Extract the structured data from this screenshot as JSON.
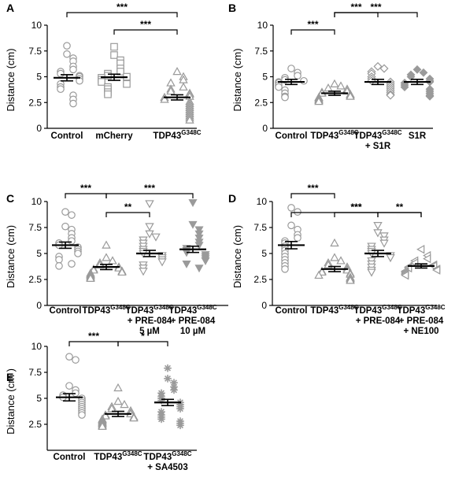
{
  "colors": {
    "marker": "#9a9a9a",
    "axis": "#000000"
  },
  "chart_data": [
    {
      "panel": "A",
      "type": "scatter",
      "ylabel": "Distance (cm)",
      "ylim": [
        0,
        10
      ],
      "yticks": [
        "0",
        "2.5",
        "5",
        "7.5",
        "10"
      ],
      "groups": [
        {
          "label": [
            "Control"
          ],
          "marker": "circle",
          "mean": 4.9,
          "sem": 0.3,
          "values": [
            8.0,
            7.2,
            6.8,
            6.5,
            6.0,
            5.7,
            5.5,
            5.3,
            5.1,
            5.0,
            4.8,
            4.6,
            4.3,
            4.0,
            3.8,
            3.2,
            2.8,
            2.4
          ]
        },
        {
          "label": [
            "mCherry"
          ],
          "marker": "square",
          "mean": 4.95,
          "sem": 0.3,
          "values": [
            7.9,
            7.1,
            6.6,
            6.3,
            5.8,
            5.5,
            5.3,
            5.1,
            5.0,
            4.9,
            4.7,
            4.5,
            4.3,
            4.0,
            3.8,
            3.5,
            3.3
          ]
        },
        {
          "label": [
            "TDP43G348C"
          ],
          "marker": "triangle-up",
          "mean": 3.0,
          "sem": 0.25,
          "values": [
            5.5,
            5.0,
            4.7,
            4.4,
            4.0,
            3.8,
            3.6,
            3.4,
            3.3,
            3.1,
            3.0,
            2.8,
            2.6,
            2.4,
            2.2,
            2.0,
            1.8,
            1.6,
            1.4,
            1.2,
            1.0,
            0.8
          ]
        }
      ],
      "significance": [
        {
          "from": 0,
          "to": 2,
          "label": "***"
        },
        {
          "from": 1,
          "to": 2,
          "label": "***"
        }
      ]
    },
    {
      "panel": "B",
      "type": "scatter",
      "ylabel": "Distance (cm)",
      "ylim": [
        0,
        10
      ],
      "yticks": [
        "0",
        "2.5",
        "5",
        "7.5",
        "10"
      ],
      "groups": [
        {
          "label": [
            "Control"
          ],
          "marker": "circle",
          "mean": 4.5,
          "sem": 0.25,
          "values": [
            5.8,
            5.4,
            5.1,
            4.9,
            4.7,
            4.6,
            4.5,
            4.4,
            4.2,
            4.0,
            3.7,
            3.4,
            3.1,
            3.0
          ]
        },
        {
          "label": [
            "TDP43G348C"
          ],
          "marker": "triangle-up",
          "mean": 3.4,
          "sem": 0.2,
          "values": [
            4.3,
            4.1,
            3.9,
            3.8,
            3.6,
            3.5,
            3.4,
            3.3,
            3.2,
            3.1,
            3.0,
            2.9,
            2.8,
            2.7,
            2.6
          ]
        },
        {
          "label": [
            "TDP43G348C",
            "+ S1R"
          ],
          "marker": "diamond",
          "mean": 4.5,
          "sem": 0.25,
          "values": [
            6.0,
            5.8,
            5.5,
            5.3,
            5.0,
            4.8,
            4.6,
            4.5,
            4.3,
            4.1,
            3.9,
            3.7,
            3.5,
            3.3,
            3.2
          ]
        },
        {
          "label": [
            "S1R"
          ],
          "marker": "diamond-filled",
          "mean": 4.5,
          "sem": 0.25,
          "values": [
            5.7,
            5.4,
            5.2,
            5.0,
            4.8,
            4.6,
            4.5,
            4.4,
            4.2,
            4.0,
            3.8,
            3.6,
            3.4,
            3.2,
            3.1
          ]
        }
      ],
      "significance": [
        {
          "from": 0,
          "to": 1,
          "label": "***"
        },
        {
          "from": 1,
          "to": 2,
          "label": "***"
        },
        {
          "from": 1,
          "to": 3,
          "label": "***"
        }
      ]
    },
    {
      "panel": "C",
      "type": "scatter",
      "ylabel": "Distance (cm)",
      "ylim": [
        0,
        10
      ],
      "yticks": [
        "0",
        "2.5",
        "5",
        "7.5",
        "10"
      ],
      "groups": [
        {
          "label": [
            "Control"
          ],
          "marker": "circle",
          "mean": 5.8,
          "sem": 0.3,
          "values": [
            9.0,
            8.7,
            7.6,
            7.3,
            6.9,
            6.5,
            6.2,
            6.0,
            5.8,
            5.6,
            5.4,
            5.2,
            5.0,
            4.7,
            4.4,
            4.0,
            3.8
          ]
        },
        {
          "label": [
            "TDP43G348C"
          ],
          "marker": "triangle-up",
          "mean": 3.7,
          "sem": 0.25,
          "values": [
            5.8,
            4.6,
            4.3,
            4.1,
            3.9,
            3.7,
            3.6,
            3.5,
            3.4,
            3.3,
            3.2,
            3.1,
            3.0,
            2.9,
            2.8,
            2.7,
            2.6
          ]
        },
        {
          "label": [
            "TDP43G348C",
            "+ PRE-084",
            "5 µM"
          ],
          "marker": "triangle-down",
          "mean": 5.0,
          "sem": 0.3,
          "values": [
            9.8,
            7.6,
            6.9,
            6.6,
            6.3,
            6.0,
            5.7,
            5.4,
            5.2,
            5.0,
            4.8,
            4.6,
            4.4,
            4.2,
            3.9,
            3.6,
            3.3
          ]
        },
        {
          "label": [
            "TDP43G348C",
            "+ PRE-084",
            "10 µM"
          ],
          "marker": "triangle-down-filled",
          "mean": 5.4,
          "sem": 0.3,
          "values": [
            9.9,
            7.8,
            7.3,
            6.9,
            6.5,
            6.1,
            5.8,
            5.5,
            5.3,
            5.1,
            4.9,
            4.7,
            4.5,
            4.3,
            4.0,
            3.6
          ]
        }
      ],
      "significance": [
        {
          "from": 0,
          "to": 1,
          "label": "***"
        },
        {
          "from": 1,
          "to": 2,
          "label": "**"
        },
        {
          "from": 1,
          "to": 3,
          "label": "***"
        }
      ]
    },
    {
      "panel": "D",
      "type": "scatter",
      "ylabel": "Distance (cm)",
      "ylim": [
        0,
        10
      ],
      "yticks": [
        "0",
        "2.5",
        "5",
        "7.5",
        "10"
      ],
      "groups": [
        {
          "label": [
            "Control"
          ],
          "marker": "circle",
          "mean": 5.8,
          "sem": 0.35,
          "values": [
            9.4,
            9.0,
            7.7,
            7.3,
            6.8,
            6.5,
            6.2,
            6.0,
            5.7,
            5.5,
            5.3,
            5.0,
            4.7,
            4.4,
            4.1,
            3.8,
            3.5
          ]
        },
        {
          "label": [
            "TDP43G348C"
          ],
          "marker": "triangle-up",
          "mean": 3.5,
          "sem": 0.25,
          "values": [
            6.0,
            4.6,
            4.3,
            4.1,
            3.9,
            3.7,
            3.5,
            3.4,
            3.3,
            3.2,
            3.1,
            3.0,
            2.9,
            2.7,
            2.6,
            2.5,
            2.4
          ]
        },
        {
          "label": [
            "TDP43G348C",
            "+ PRE-084"
          ],
          "marker": "triangle-down",
          "mean": 5.0,
          "sem": 0.3,
          "values": [
            7.7,
            7.0,
            6.7,
            6.3,
            6.0,
            5.7,
            5.4,
            5.2,
            5.0,
            4.8,
            4.6,
            4.3,
            4.0,
            3.7,
            3.4,
            3.2
          ]
        },
        {
          "label": [
            "TDP43G348C",
            "+ PRE-084",
            "+ NE100"
          ],
          "marker": "triangle-left",
          "mean": 3.8,
          "sem": 0.2,
          "values": [
            5.4,
            4.8,
            4.5,
            4.3,
            4.1,
            3.9,
            3.8,
            3.7,
            3.6,
            3.5,
            3.4,
            3.3,
            3.2,
            3.1,
            3.0,
            2.9
          ]
        }
      ],
      "significance": [
        {
          "from": 0,
          "to": 1,
          "label": "***"
        },
        {
          "from": 0,
          "to": 3,
          "label": "***"
        },
        {
          "from": 1,
          "to": 2,
          "label": "***"
        },
        {
          "from": 2,
          "to": 3,
          "label": "**"
        }
      ]
    },
    {
      "panel": "E",
      "type": "scatter",
      "ylabel": "Distance (cm )",
      "ylim": [
        0,
        10
      ],
      "yticks": [
        "2.5",
        "5",
        "7.5",
        "10"
      ],
      "groups": [
        {
          "label": [
            "Control"
          ],
          "marker": "circle",
          "mean": 5.1,
          "sem": 0.35,
          "values": [
            9.0,
            8.7,
            6.2,
            5.8,
            5.5,
            5.3,
            5.1,
            5.0,
            4.8,
            4.6,
            4.4,
            4.2,
            4.0,
            3.8,
            3.6,
            3.4
          ]
        },
        {
          "label": [
            "TDP43G348C"
          ],
          "marker": "triangle-up",
          "mean": 3.5,
          "sem": 0.25,
          "values": [
            6.0,
            4.7,
            4.4,
            4.2,
            4.0,
            3.8,
            3.6,
            3.5,
            3.4,
            3.3,
            3.2,
            3.1,
            3.0,
            2.9,
            2.8,
            2.7,
            2.6,
            2.5,
            2.4,
            2.3
          ]
        },
        {
          "label": [
            "TDP43G348C",
            "+ SA4503"
          ],
          "marker": "asterisk",
          "mean": 4.6,
          "sem": 0.3,
          "values": [
            7.9,
            6.9,
            6.5,
            6.1,
            5.8,
            5.5,
            5.2,
            5.0,
            4.8,
            4.6,
            4.4,
            4.2,
            4.0,
            3.7,
            3.4,
            3.2,
            3.0,
            2.8,
            2.6,
            2.4
          ]
        }
      ],
      "significance": [
        {
          "from": 0,
          "to": 1,
          "label": "***"
        },
        {
          "from": 1,
          "to": 2,
          "label": "*"
        }
      ]
    }
  ]
}
